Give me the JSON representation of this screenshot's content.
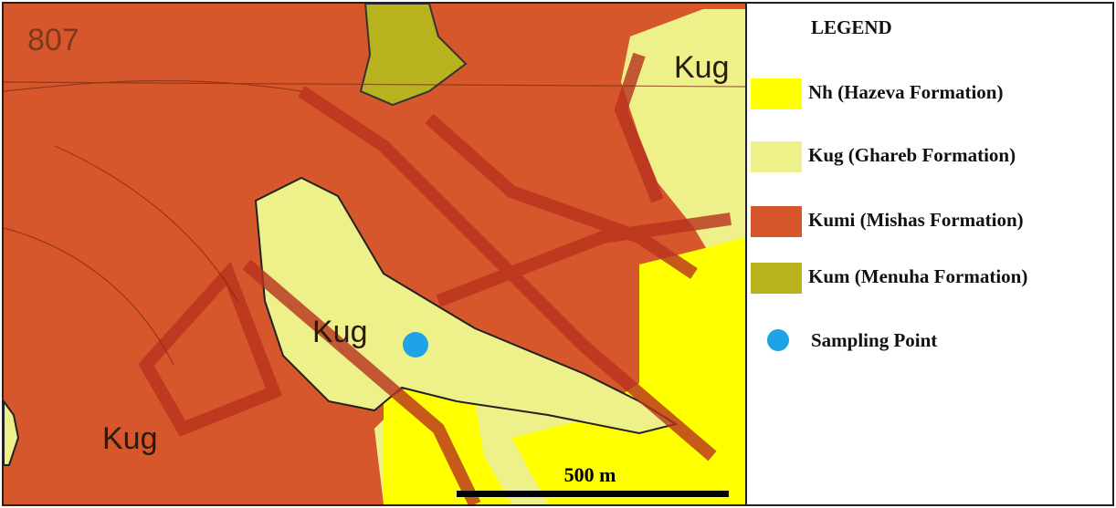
{
  "map": {
    "labels": [
      {
        "text": "807"
      },
      {
        "text": "Kug"
      },
      {
        "text": "Kug"
      },
      {
        "text": "Kug"
      }
    ],
    "scale_bar": "500 m"
  },
  "legend": {
    "title": "LEGEND",
    "items": [
      {
        "label": "Nh (Hazeva Formation)",
        "color": "#ffff00"
      },
      {
        "label": "Kug (Ghareb Formation)",
        "color": "#eef08a"
      },
      {
        "label": "Kumi (Mishas Formation)",
        "color": "#d6572b"
      },
      {
        "label": "Kum (Menuha Formation)",
        "color": "#b7b21e"
      }
    ],
    "sampling_point": {
      "label": "Sampling Point",
      "color": "#1ea3e6"
    }
  }
}
